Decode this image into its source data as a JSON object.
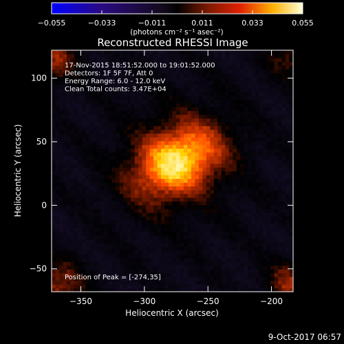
{
  "chart_data": {
    "type": "heatmap",
    "title": "Reconstructed RHESSI Image",
    "xlabel": "Heliocentric X (arcsec)",
    "ylabel": "Heliocentric Y (arcsec)",
    "xlim": [
      -373,
      -183
    ],
    "ylim": [
      -68,
      122
    ],
    "x_ticks": [
      -350,
      -300,
      -250,
      -200
    ],
    "y_ticks": [
      -50,
      0,
      50,
      100
    ],
    "x_tick_labels": [
      "−350",
      "−300",
      "−250",
      "−200"
    ],
    "y_tick_labels": [
      "−50",
      "0",
      "50",
      "100"
    ],
    "colorbar": {
      "range": [
        -0.055,
        0.055
      ],
      "ticks": [
        -0.055,
        -0.033,
        -0.011,
        0.011,
        0.033,
        0.055
      ],
      "tick_labels": [
        "−0.055",
        "−0.033",
        "−0.011",
        "0.011",
        "0.033",
        "0.055"
      ],
      "unit_label": "(photons cm⁻² s⁻¹ asec⁻²)",
      "stops": [
        "#0000ff",
        "#1a1030",
        "#000000",
        "#7a1a00",
        "#ff4a00",
        "#ffd000",
        "#ffffd8"
      ]
    },
    "info_lines": [
      "17-Nov-2015 18:51:52.000 to 19:01:52.000",
      "Detectors: 1F 5F 7F, Att 0",
      "Energy Range: 6.0 - 12.0 keV",
      "Clean     Total counts: 3.47E+04"
    ],
    "peak_label": "Position of Peak = [-274,35]",
    "peak": [
      -274,
      35
    ]
  },
  "footer": {
    "date": "9-Oct-2017 06:57"
  }
}
